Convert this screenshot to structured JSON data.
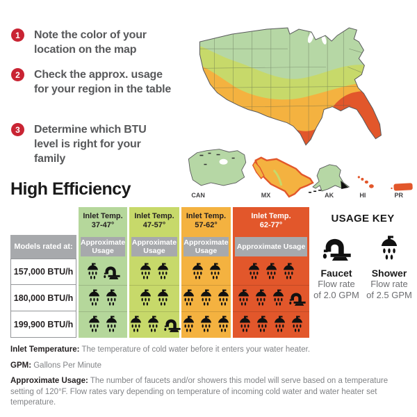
{
  "steps": [
    {
      "number": "1",
      "text": "Note the color of your location on the map"
    },
    {
      "number": "2",
      "text": "Check the approx. usage for your region in the table"
    },
    {
      "number": "3",
      "text": "Determine which BTU level is right for your family"
    }
  ],
  "title": "High Efficiency",
  "map": {
    "labels": [
      "CAN",
      "MX",
      "AK",
      "HI",
      "PR"
    ],
    "zone_colors": {
      "zone_37_47": "#b6d7a5",
      "zone_47_57": "#c7d96a",
      "zone_57_62": "#f4b240",
      "zone_62_77": "#e2572b"
    }
  },
  "table": {
    "corner_label": "Models rated at:",
    "usage_header": "Approximate Usage",
    "columns": [
      {
        "line1": "Inlet Temp.",
        "line2": "37-47°",
        "color": "#b5d79b",
        "text_color": "#231f20"
      },
      {
        "line1": "Inlet Temp.",
        "line2": "47-57°",
        "color": "#c7d96a",
        "text_color": "#231f20"
      },
      {
        "line1": "Inlet Temp.",
        "line2": "57-62°",
        "color": "#f4b240",
        "text_color": "#231f20"
      },
      {
        "line1": "Inlet Temp.",
        "line2": "62-77°",
        "color": "#e2572b",
        "text_color": "#ffffff"
      }
    ],
    "rows": [
      {
        "model": "157,000 BTU/h",
        "usage": [
          {
            "showers": 1,
            "faucets": 1
          },
          {
            "showers": 2,
            "faucets": 0
          },
          {
            "showers": 2,
            "faucets": 0
          },
          {
            "showers": 3,
            "faucets": 0
          }
        ]
      },
      {
        "model": "180,000 BTU/h",
        "usage": [
          {
            "showers": 2,
            "faucets": 0
          },
          {
            "showers": 2,
            "faucets": 0
          },
          {
            "showers": 3,
            "faucets": 0
          },
          {
            "showers": 3,
            "faucets": 1
          }
        ]
      },
      {
        "model": "199,900 BTU/h",
        "usage": [
          {
            "showers": 2,
            "faucets": 0
          },
          {
            "showers": 2,
            "faucets": 1
          },
          {
            "showers": 3,
            "faucets": 0
          },
          {
            "showers": 4,
            "faucets": 0
          }
        ]
      }
    ]
  },
  "usage_key": {
    "title": "USAGE KEY",
    "items": [
      {
        "name": "Faucet",
        "icon": "faucet-icon",
        "lines": [
          "Flow rate",
          "of 2.0 GPM"
        ]
      },
      {
        "name": "Shower",
        "icon": "shower-icon",
        "lines": [
          "Flow rate",
          "of 2.5 GPM"
        ]
      }
    ]
  },
  "footnotes": [
    {
      "term": "Inlet Temperature:",
      "definition": " The temperature of cold water before it enters your water heater."
    },
    {
      "term": "GPM:",
      "definition": " Gallons Per Minute"
    },
    {
      "term": "Approximate Usage:",
      "definition": " The number of faucets and/or showers this model will serve based on a temperature setting of 120°F. Flow rates vary depending on temperature of incoming cold water and water heater set temperature."
    }
  ],
  "colors": {
    "step_red": "#c92433",
    "header_gray": "#a7a9ac",
    "body_text": "#57585a"
  }
}
